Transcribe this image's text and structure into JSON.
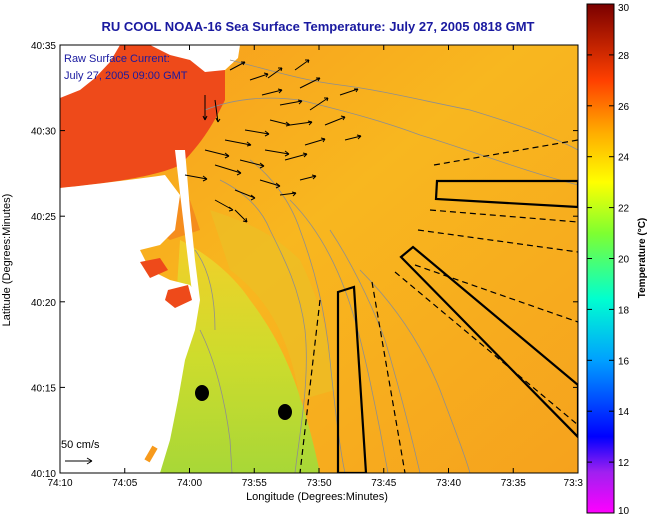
{
  "title": "RU COOL  NOAA-16  Sea Surface Temperature:  July 27, 2005 0818 GMT",
  "current_note": {
    "line1": "Raw Surface Current:",
    "line2": "July 27, 2005 09:00 GMT"
  },
  "scale_label": "50 cm/s",
  "x_axis": {
    "label": "Longitude (Degrees:Minutes)",
    "ticks": [
      "74:10",
      "74:05",
      "74:00",
      "73:55",
      "73:50",
      "73:45",
      "73:40",
      "73:35",
      "73:3"
    ]
  },
  "y_axis": {
    "label": "Latitude (Degrees:Minutes)",
    "ticks": [
      "40:35",
      "40:30",
      "40:25",
      "40:20",
      "40:15",
      "40:10"
    ]
  },
  "colorbar": {
    "label": "Temperature (°C)",
    "min": 10,
    "max": 30,
    "ticks": [
      "30",
      "28",
      "26",
      "24",
      "22",
      "20",
      "18",
      "16",
      "14",
      "12",
      "10"
    ],
    "colormap": "jet"
  },
  "colors": {
    "title": "#1a1aa0",
    "land": "#ffffff",
    "sea_warm": "#f7a31d",
    "sea_cool": "#b3e030",
    "nearshore_hot": "#ee4a1a"
  }
}
